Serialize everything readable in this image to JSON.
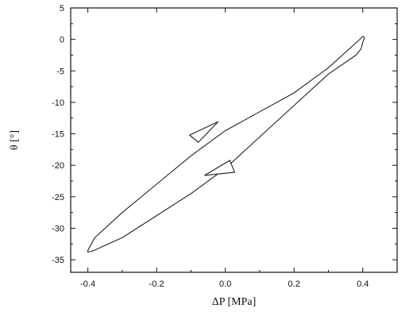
{
  "chart_data": {
    "type": "line",
    "title": "",
    "xlabel": "ΔP [MPa]",
    "ylabel": "θ [°]",
    "xlim": [
      -0.45,
      0.5
    ],
    "ylim": [
      -37,
      5
    ],
    "x_ticks": [
      -0.4,
      -0.2,
      0.0,
      0.2,
      0.4
    ],
    "x_tick_labels": [
      "-0.4",
      "-0.2",
      "0.0",
      "0.2",
      "0.4"
    ],
    "y_ticks": [
      5,
      0,
      -5,
      -10,
      -15,
      -20,
      -25,
      -30,
      -35
    ],
    "y_tick_labels": [
      "5",
      "0",
      "-5",
      "-10",
      "-15",
      "-20",
      "-25",
      "-30",
      "-35"
    ],
    "grid": false,
    "legend": "none",
    "series": [
      {
        "description_role": "hysteresis-loop",
        "color": "#222222",
        "x": [
          0.4,
          0.395,
          0.3,
          0.2,
          0.1,
          0.0,
          -0.1,
          -0.2,
          -0.3,
          -0.38,
          -0.4,
          -0.4,
          -0.385,
          -0.3,
          -0.2,
          -0.1,
          0.0,
          0.1,
          0.2,
          0.3,
          0.38,
          0.395,
          0.4,
          0.405,
          0.4
        ],
        "y": [
          0.5,
          0.2,
          -4.5,
          -8.5,
          -11.5,
          -14.5,
          -18.5,
          -23.0,
          -27.5,
          -31.5,
          -33.5,
          -33.8,
          -33.6,
          -31.5,
          -28.0,
          -24.5,
          -20.5,
          -15.5,
          -10.5,
          -5.5,
          -2.5,
          -1.5,
          -0.5,
          0.3,
          0.5
        ]
      }
    ],
    "annotations": [
      {
        "type": "arrow",
        "direction": "up-left",
        "x": -0.06,
        "y": -14.2
      },
      {
        "type": "arrow",
        "direction": "down-left",
        "x": -0.01,
        "y": -20.6
      }
    ]
  }
}
